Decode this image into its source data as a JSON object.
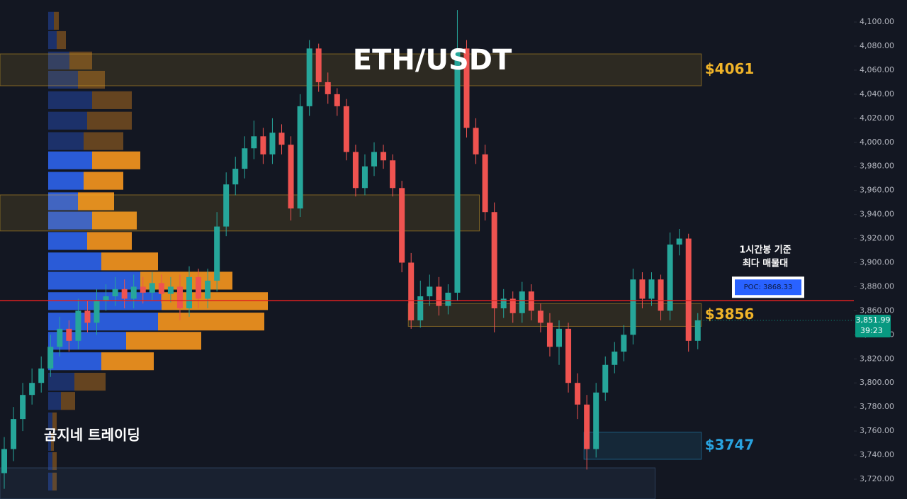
{
  "chart_data": {
    "type": "candlestick",
    "title": "ETH/USDT",
    "watermark": "곰지네 트레이딩",
    "annotation": [
      "1시간봉 기준",
      "최다 매물대"
    ],
    "up_color": "#26a69a",
    "down_color": "#ef5350",
    "ylim": [
      3703.5,
      4118.3
    ],
    "yticks": [
      {
        "value": 3720,
        "label": "3,720.00"
      },
      {
        "value": 3740,
        "label": "3,740.00"
      },
      {
        "value": 3760,
        "label": "3,760.00"
      },
      {
        "value": 3780,
        "label": "3,780.00"
      },
      {
        "value": 3800,
        "label": "3,800.00"
      },
      {
        "value": 3820,
        "label": "3,820.00"
      },
      {
        "value": 3840,
        "label": "3,840.00"
      },
      {
        "value": 3860,
        "label": "3,860.00"
      },
      {
        "value": 3880,
        "label": "3,880.00"
      },
      {
        "value": 3900,
        "label": "3,900.00"
      },
      {
        "value": 3920,
        "label": "3,920.00"
      },
      {
        "value": 3940,
        "label": "3,940.00"
      },
      {
        "value": 3960,
        "label": "3,960.00"
      },
      {
        "value": 3980,
        "label": "3,980.00"
      },
      {
        "value": 4000,
        "label": "4,000.00"
      },
      {
        "value": 4020,
        "label": "4,020.00"
      },
      {
        "value": 4040,
        "label": "4,040.00"
      },
      {
        "value": 4060,
        "label": "4,060.00"
      },
      {
        "value": 4080,
        "label": "4,080.00"
      },
      {
        "value": 4100,
        "label": "4,100.00"
      }
    ],
    "open": [
      3725,
      3745,
      3770,
      3790,
      3800,
      3812,
      3830,
      3845,
      3835,
      3860,
      3850,
      3868,
      3872,
      3878,
      3870,
      3880,
      3875,
      3883,
      3874,
      3880,
      3862,
      3888,
      3870,
      3885,
      3930,
      3965,
      3978,
      3995,
      4005,
      3990,
      4008,
      3998,
      3945,
      4030,
      4078,
      4050,
      4040,
      4030,
      3992,
      3962,
      3980,
      3992,
      3985,
      3962,
      3900,
      3852,
      3872,
      3880,
      3864,
      3875,
      4078,
      4012,
      3990,
      3942,
      3862,
      3870,
      3858,
      3876,
      3860,
      3850,
      3830,
      3845,
      3800,
      3782,
      3745,
      3792,
      3815,
      3826,
      3840,
      3886,
      3870,
      3886,
      3860,
      3915,
      3920,
      3835
    ],
    "high": [
      3755,
      3780,
      3800,
      3812,
      3822,
      3840,
      3855,
      3852,
      3870,
      3868,
      3878,
      3882,
      3888,
      3886,
      3890,
      3888,
      3892,
      3890,
      3888,
      3890,
      3897,
      3895,
      3895,
      3942,
      3975,
      3988,
      4005,
      4018,
      4012,
      4020,
      4015,
      4005,
      4040,
      4085,
      4082,
      4058,
      4045,
      4036,
      3998,
      3990,
      4000,
      3998,
      3990,
      3968,
      3908,
      3885,
      3890,
      3888,
      3882,
      4110,
      4085,
      4020,
      3998,
      3950,
      3878,
      3876,
      3884,
      3882,
      3866,
      3858,
      3852,
      3850,
      3808,
      3790,
      3800,
      3822,
      3834,
      3848,
      3895,
      3892,
      3892,
      3890,
      3925,
      3928,
      3924,
      3858
    ],
    "low": [
      3712,
      3735,
      3760,
      3782,
      3792,
      3805,
      3822,
      3826,
      3828,
      3842,
      3840,
      3860,
      3864,
      3862,
      3862,
      3866,
      3868,
      3866,
      3867,
      3852,
      3855,
      3862,
      3862,
      3876,
      3922,
      3956,
      3970,
      3986,
      3982,
      3982,
      3990,
      3935,
      3938,
      4022,
      4042,
      4032,
      4022,
      3985,
      3955,
      3956,
      3972,
      3978,
      3955,
      3892,
      3845,
      3846,
      3864,
      3856,
      3857,
      3868,
      4004,
      3982,
      3935,
      3842,
      3854,
      3850,
      3850,
      3852,
      3842,
      3822,
      3815,
      3792,
      3770,
      3728,
      3738,
      3785,
      3808,
      3818,
      3832,
      3862,
      3864,
      3852,
      3852,
      3906,
      3826,
      3828
    ],
    "close": [
      3745,
      3770,
      3790,
      3800,
      3812,
      3830,
      3845,
      3835,
      3860,
      3850,
      3868,
      3872,
      3878,
      3870,
      3880,
      3875,
      3883,
      3874,
      3880,
      3862,
      3888,
      3870,
      3885,
      3930,
      3965,
      3978,
      3995,
      4005,
      3990,
      4008,
      3998,
      3945,
      4030,
      4078,
      4050,
      4040,
      4030,
      3992,
      3962,
      3980,
      3992,
      3985,
      3962,
      3900,
      3852,
      3872,
      3880,
      3864,
      3875,
      4078,
      4012,
      3990,
      3942,
      3862,
      3870,
      3858,
      3876,
      3860,
      3850,
      3830,
      3845,
      3800,
      3782,
      3745,
      3792,
      3815,
      3826,
      3840,
      3886,
      3870,
      3886,
      3860,
      3915,
      3920,
      3835,
      3852
    ],
    "volume_profile": {
      "prices": [
        4101,
        4085,
        4068,
        4052,
        4035,
        4018,
        4001,
        3985,
        3968,
        3951,
        3935,
        3918,
        3901,
        3885,
        3868,
        3851,
        3835,
        3818,
        3801,
        3785,
        3768,
        3751,
        3735,
        3718
      ],
      "buy": [
        8,
        12,
        30,
        42,
        62,
        55,
        50,
        62,
        50,
        42,
        62,
        55,
        75,
        130,
        160,
        155,
        110,
        75,
        37,
        18,
        6,
        4,
        6,
        6
      ],
      "sell": [
        7,
        13,
        32,
        38,
        56,
        63,
        56,
        68,
        56,
        51,
        63,
        63,
        80,
        130,
        150,
        150,
        106,
        74,
        44,
        20,
        6,
        4,
        6,
        6
      ],
      "buy_color": "#2a5bd7",
      "sell_color": "#e0891e",
      "value_area": [
        3810,
        3993
      ]
    },
    "zones": [
      {
        "low": 4047,
        "high": 4073.5,
        "start": 0,
        "end": 75,
        "label": "$4061",
        "color": "#f0b429"
      },
      {
        "low": 3926.3,
        "high": 3956.3,
        "start": 0,
        "end": 51,
        "color": "#f0b429"
      },
      {
        "low": 3847,
        "high": 3866,
        "start": 44,
        "end": 75,
        "label": "$3856",
        "color": "#f0b429"
      },
      {
        "low": 3736.5,
        "high": 3759,
        "start": 63,
        "end": 75,
        "label": "$3747",
        "color": "#29a3e0"
      },
      {
        "low": 3703.5,
        "high": 3729.4,
        "start": 0,
        "end": 70,
        "color": "#4a6a9a"
      }
    ],
    "poc": {
      "value": 3868.33,
      "label": "POC: 3868.33",
      "color": "#e02020"
    },
    "last_price": {
      "value": 3851.99,
      "label": "3,851.99",
      "countdown": "39:23",
      "color": "#089981"
    }
  }
}
